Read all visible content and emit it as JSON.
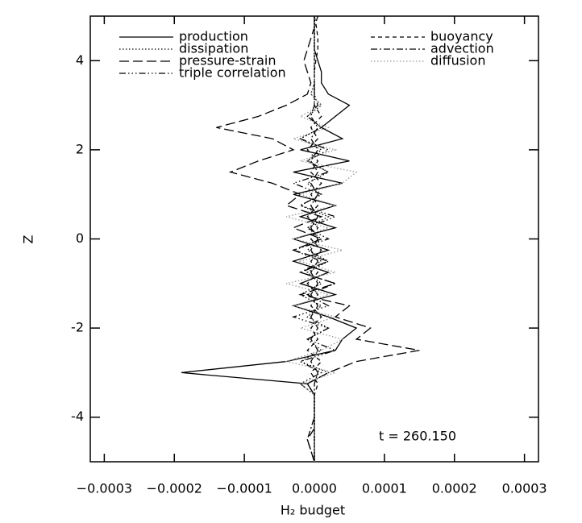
{
  "chart_data": {
    "type": "line",
    "xlabel": "H₂ budget",
    "ylabel": "Z",
    "annotation": "t = 260.150",
    "xlim": [
      -0.00032,
      0.00032
    ],
    "xticks": [
      {
        "value": -0.0003,
        "label": "−0.0003"
      },
      {
        "value": -0.0002,
        "label": "−0.0002"
      },
      {
        "value": -0.0001,
        "label": "−0.0001"
      },
      {
        "value": 0,
        "label": "0.0000"
      },
      {
        "value": 0.0001,
        "label": "0.0001"
      },
      {
        "value": 0.0002,
        "label": "0.0002"
      },
      {
        "value": 0.0003,
        "label": "0.0003"
      }
    ],
    "ylim": [
      -5,
      5
    ],
    "yticks": [
      -4,
      -2,
      0,
      2,
      4
    ],
    "z": [
      -5,
      -4.75,
      -4.5,
      -4.25,
      -4,
      -3.75,
      -3.5,
      -3.25,
      -3,
      -2.75,
      -2.5,
      -2.25,
      -2,
      -1.75,
      -1.5,
      -1.25,
      -1,
      -0.75,
      -0.5,
      -0.25,
      0,
      0.25,
      0.5,
      0.75,
      1,
      1.25,
      1.5,
      1.75,
      2,
      2.25,
      2.5,
      2.75,
      3,
      3.25,
      3.5,
      3.75,
      4,
      4.25,
      4.5,
      4.75,
      5
    ],
    "series": [
      {
        "name": "production",
        "color": "#000000",
        "dash": "solid",
        "values": [
          0,
          0,
          0,
          0,
          0,
          0,
          0,
          -1e-05,
          -0.00019,
          -4e-05,
          3e-05,
          4e-05,
          6e-05,
          2e-05,
          -3e-05,
          3e-05,
          -2e-05,
          2e-05,
          -3e-05,
          2e-05,
          -3e-05,
          3e-05,
          -2e-05,
          3e-05,
          -3e-05,
          4e-05,
          -3e-05,
          5e-05,
          -2e-05,
          4e-05,
          1e-05,
          3e-05,
          5e-05,
          2e-05,
          1e-05,
          1e-05,
          5e-06,
          0,
          0,
          0,
          0
        ]
      },
      {
        "name": "dissipation",
        "color": "#000000",
        "dash": "dotted",
        "values": [
          0,
          0,
          0,
          0,
          0,
          0,
          0,
          -1e-05,
          2e-05,
          -2e-05,
          1e-05,
          -1e-05,
          2e-05,
          -1e-05,
          1e-05,
          -2e-05,
          1e-05,
          -1e-05,
          2e-05,
          -1e-05,
          1e-05,
          -1e-05,
          2e-05,
          -2e-05,
          1e-05,
          -1e-05,
          2e-05,
          -1e-05,
          1e-05,
          -2e-05,
          1e-05,
          -1e-05,
          1e-05,
          -5e-06,
          0,
          0,
          0,
          0,
          0,
          0,
          0
        ]
      },
      {
        "name": "pressure-strain",
        "color": "#000000",
        "dash": "longdash",
        "values": [
          0,
          -5e-06,
          -1e-05,
          0,
          0,
          0,
          0,
          -1e-05,
          2e-05,
          6e-05,
          0.00015,
          6e-05,
          8e-05,
          3e-05,
          5e-05,
          -2e-05,
          3e-05,
          -2e-05,
          2e-05,
          -3e-05,
          1e-05,
          -3e-05,
          1e-05,
          -4e-05,
          -2e-05,
          -6e-05,
          -0.00012,
          -8e-05,
          -3e-05,
          -6e-05,
          -0.00014,
          -8e-05,
          -4e-05,
          -1e-05,
          -5e-06,
          -1e-05,
          -1.5e-05,
          -1e-05,
          -5e-06,
          0,
          5e-06
        ]
      },
      {
        "name": "triple correlation",
        "color": "#000000",
        "dash": "dashdotdotdot",
        "values": [
          0,
          0,
          0,
          0,
          0,
          0,
          0,
          -2e-05,
          1e-05,
          -2e-05,
          3e-05,
          -1e-05,
          2e-05,
          -3e-05,
          2e-05,
          -1e-05,
          3e-05,
          -2e-05,
          1e-05,
          -3e-05,
          2e-05,
          -1e-05,
          3e-05,
          -2e-05,
          1e-05,
          -3e-05,
          2e-05,
          -1e-05,
          2e-05,
          -2e-05,
          1e-05,
          -1e-05,
          5e-06,
          0,
          0,
          0,
          0,
          0,
          0,
          0,
          0
        ]
      },
      {
        "name": "buoyancy",
        "color": "#000000",
        "dash": "dashed",
        "values": [
          0,
          0,
          0,
          0,
          0,
          0,
          0,
          5e-06,
          -5e-06,
          1e-05,
          -1e-05,
          5e-06,
          -5e-06,
          1e-05,
          -5e-06,
          5e-06,
          -1e-05,
          5e-06,
          -5e-06,
          1e-05,
          -5e-06,
          5e-06,
          -1e-05,
          5e-06,
          -5e-06,
          1e-05,
          -5e-06,
          5e-06,
          -1e-05,
          5e-06,
          -5e-06,
          1e-05,
          0,
          0,
          0,
          0,
          2e-06,
          5e-06,
          5e-06,
          3e-06,
          0
        ]
      },
      {
        "name": "advection",
        "color": "#000000",
        "dash": "dashdot",
        "values": [
          0,
          -5e-06,
          -1e-05,
          -5e-06,
          0,
          0,
          0,
          0,
          5e-06,
          -5e-06,
          5e-06,
          -5e-06,
          5e-06,
          -5e-06,
          5e-06,
          -5e-06,
          5e-06,
          -5e-06,
          5e-06,
          -5e-06,
          5e-06,
          -5e-06,
          5e-06,
          -5e-06,
          5e-06,
          -5e-06,
          5e-06,
          -5e-06,
          5e-06,
          -5e-06,
          5e-06,
          -5e-06,
          0,
          0,
          0,
          0,
          0,
          0,
          0,
          0,
          0
        ]
      },
      {
        "name": "diffusion",
        "color": "#999999",
        "dash": "dotted",
        "values": [
          0,
          0,
          0,
          0,
          0,
          0,
          0,
          -2e-05,
          3e-05,
          -4e-05,
          1e-05,
          4e-05,
          -2e-05,
          3e-05,
          -3e-05,
          2e-05,
          -4e-05,
          3e-05,
          -2e-05,
          4e-05,
          -3e-05,
          2e-05,
          -4e-05,
          3e-05,
          -2e-05,
          4e-05,
          6e-05,
          -2e-05,
          3e-05,
          -3e-05,
          2e-05,
          -2e-05,
          1e-05,
          -5e-06,
          0,
          0,
          0,
          0,
          0,
          0,
          0
        ]
      }
    ]
  }
}
